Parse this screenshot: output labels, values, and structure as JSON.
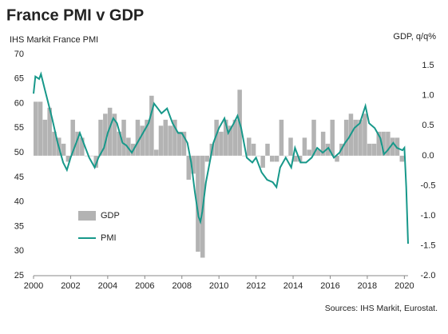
{
  "chart_data": {
    "type": "bar-line",
    "title": "France PMI v GDP",
    "y_label": "IHS Markit  France PMI",
    "y2_label": "GDP, q/q%",
    "source": "Sources: IHS Markit, Eurostat.",
    "xlim": [
      2000,
      2020.2
    ],
    "xticks": [
      2000,
      2002,
      2004,
      2006,
      2008,
      2010,
      2012,
      2014,
      2016,
      2018,
      2020
    ],
    "ylim": [
      25,
      70
    ],
    "yticks": [
      25,
      30,
      35,
      40,
      45,
      50,
      55,
      60,
      65,
      70
    ],
    "y2lim": [
      -2.0,
      1.69
    ],
    "y2ticks": [
      {
        "value": -2.0,
        "label": "-2.0"
      },
      -1.5,
      {
        "value": -1.0,
        "label": "-1.0"
      },
      -0.5,
      {
        "value": 0.0,
        "label": "0.0"
      },
      0.5,
      {
        "value": 1.0,
        "label": "1.0"
      },
      1.5
    ],
    "legend": "lower left",
    "series": [
      {
        "name": "GDP",
        "type": "bar",
        "axis": "y2",
        "color": "#b3b3b3",
        "x": [
          2000,
          2000.25,
          2000.5,
          2000.75,
          2001,
          2001.25,
          2001.5,
          2001.75,
          2002,
          2002.25,
          2002.5,
          2002.75,
          2003,
          2003.25,
          2003.5,
          2003.75,
          2004,
          2004.25,
          2004.5,
          2004.75,
          2005,
          2005.25,
          2005.5,
          2005.75,
          2006,
          2006.25,
          2006.5,
          2006.75,
          2007,
          2007.25,
          2007.5,
          2007.75,
          2008,
          2008.25,
          2008.5,
          2008.75,
          2009,
          2009.25,
          2009.5,
          2009.75,
          2010,
          2010.25,
          2010.5,
          2010.75,
          2011,
          2011.25,
          2011.5,
          2011.75,
          2012,
          2012.25,
          2012.5,
          2012.75,
          2013,
          2013.25,
          2013.5,
          2013.75,
          2014,
          2014.25,
          2014.5,
          2014.75,
          2015,
          2015.25,
          2015.5,
          2015.75,
          2016,
          2016.25,
          2016.5,
          2016.75,
          2017,
          2017.25,
          2017.5,
          2017.75,
          2018,
          2018.25,
          2018.5,
          2018.75,
          2019,
          2019.25,
          2019.5,
          2019.75
        ],
        "values": [
          0.9,
          0.9,
          0.6,
          0.8,
          0.4,
          0.3,
          0.2,
          -0.1,
          0.6,
          0.4,
          0.3,
          0.0,
          0.0,
          -0.2,
          0.6,
          0.7,
          0.8,
          0.7,
          0.4,
          0.6,
          0.3,
          0.2,
          0.6,
          0.5,
          0.6,
          1.0,
          0.1,
          0.5,
          0.6,
          0.5,
          0.6,
          0.4,
          0.4,
          -0.4,
          -0.3,
          -1.6,
          -1.7,
          -0.1,
          0.2,
          0.6,
          0.4,
          0.6,
          0.5,
          0.6,
          1.1,
          0.0,
          0.3,
          0.2,
          0.0,
          -0.2,
          0.2,
          -0.1,
          -0.1,
          0.6,
          0.0,
          0.3,
          -0.1,
          -0.1,
          0.3,
          0.1,
          0.6,
          0.1,
          0.4,
          0.2,
          0.6,
          -0.1,
          0.2,
          0.6,
          0.7,
          0.6,
          0.6,
          0.7,
          0.2,
          0.2,
          0.4,
          0.4,
          0.4,
          0.3,
          0.3,
          -0.1
        ]
      },
      {
        "name": "PMI",
        "type": "line",
        "color": "#17988a",
        "x": [
          2000.0,
          2000.1,
          2000.3,
          2000.4,
          2000.6,
          2000.8,
          2001.0,
          2001.3,
          2001.6,
          2001.8,
          2002.0,
          2002.3,
          2002.5,
          2002.8,
          2003.0,
          2003.3,
          2003.5,
          2003.8,
          2004.0,
          2004.3,
          2004.5,
          2004.8,
          2005.0,
          2005.3,
          2005.6,
          2005.9,
          2006.2,
          2006.5,
          2006.7,
          2006.9,
          2007.2,
          2007.5,
          2007.8,
          2008.0,
          2008.3,
          2008.5,
          2008.7,
          2008.9,
          2009.0,
          2009.1,
          2009.3,
          2009.5,
          2009.7,
          2010.0,
          2010.3,
          2010.5,
          2010.8,
          2011.0,
          2011.2,
          2011.5,
          2011.8,
          2012.0,
          2012.3,
          2012.6,
          2012.9,
          2013.1,
          2013.3,
          2013.6,
          2013.9,
          2014.1,
          2014.4,
          2014.7,
          2015.0,
          2015.3,
          2015.6,
          2015.9,
          2016.2,
          2016.5,
          2016.8,
          2017.0,
          2017.3,
          2017.6,
          2017.9,
          2018.1,
          2018.4,
          2018.7,
          2018.9,
          2019.1,
          2019.4,
          2019.6,
          2019.9,
          2020.0,
          2020.1,
          2020.2
        ],
        "values": [
          62,
          65.5,
          65,
          66,
          63,
          60,
          57,
          52,
          48,
          46.5,
          49,
          52,
          54,
          51,
          49,
          47,
          49,
          51,
          54,
          57,
          56,
          52,
          51.5,
          50,
          52,
          54,
          56,
          60,
          59,
          58,
          59,
          56,
          54,
          54,
          52,
          48,
          42,
          37,
          36,
          38,
          44,
          48,
          52,
          55,
          57,
          54,
          56,
          57.5,
          55,
          49,
          48,
          49,
          46,
          44.5,
          44,
          43,
          47,
          49,
          47,
          51,
          48,
          48,
          49,
          51,
          50,
          51,
          49,
          50,
          52,
          53,
          55,
          56,
          59.5,
          56,
          55,
          53,
          49.7,
          50.5,
          52,
          51,
          50.5,
          51,
          43,
          31.5
        ]
      }
    ]
  }
}
